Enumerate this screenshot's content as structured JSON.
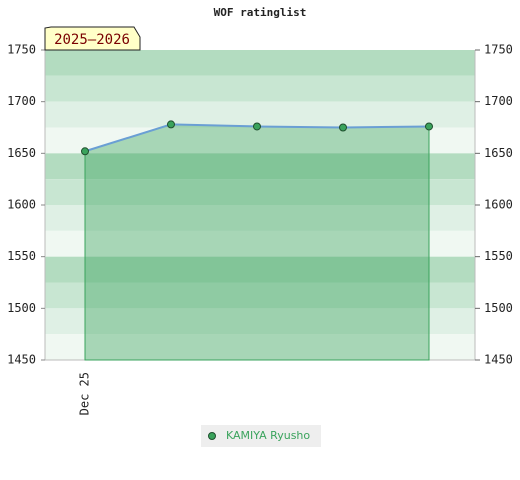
{
  "chart_data": {
    "type": "line",
    "title": "WOF ratinglist",
    "badge": "2025–2026",
    "categories": [
      "Dec 25",
      null,
      null,
      null,
      null
    ],
    "series": [
      {
        "name": "KAMIYA Ryusho",
        "color": "#3aa35c",
        "line_color": "#6a9fd4",
        "values": [
          1652,
          1678,
          1676,
          1675,
          1676
        ]
      }
    ],
    "ylim": [
      1450,
      1750
    ],
    "yticks": [
      1450,
      1500,
      1550,
      1600,
      1650,
      1700,
      1750
    ],
    "y2lim": [
      1450,
      1750
    ],
    "y2ticks": [
      1450,
      1500,
      1550,
      1600,
      1650,
      1700,
      1750
    ]
  }
}
